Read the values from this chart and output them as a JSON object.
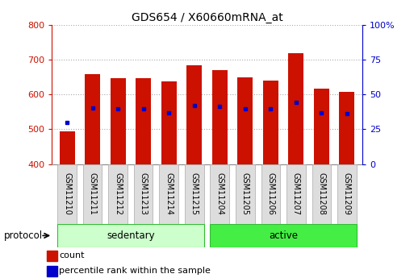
{
  "title": "GDS654 / X60660mRNA_at",
  "samples": [
    "GSM11210",
    "GSM11211",
    "GSM11212",
    "GSM11213",
    "GSM11214",
    "GSM11215",
    "GSM11204",
    "GSM11205",
    "GSM11206",
    "GSM11207",
    "GSM11208",
    "GSM11209"
  ],
  "groups": [
    "sedentary",
    "sedentary",
    "sedentary",
    "sedentary",
    "sedentary",
    "sedentary",
    "active",
    "active",
    "active",
    "active",
    "active",
    "active"
  ],
  "count_values": [
    495,
    658,
    648,
    648,
    638,
    685,
    670,
    650,
    641,
    720,
    618,
    607
  ],
  "percentile_values": [
    520,
    562,
    560,
    560,
    548,
    568,
    566,
    560,
    558,
    578,
    548,
    545
  ],
  "ylim_left": [
    400,
    800
  ],
  "ylim_right": [
    0,
    100
  ],
  "yticks_left": [
    400,
    500,
    600,
    700,
    800
  ],
  "yticks_right": [
    0,
    25,
    50,
    75,
    100
  ],
  "bar_color": "#cc1100",
  "dot_color": "#0000cc",
  "sedentary_color": "#ccffcc",
  "active_color": "#44ee44",
  "xtick_bg": "#dddddd",
  "bar_bottom": 400,
  "bar_width": 0.6,
  "legend_count_label": "count",
  "legend_percentile_label": "percentile rank within the sample",
  "protocol_label": "protocol",
  "background_color": "#ffffff",
  "grid_color": "#aaaaaa"
}
